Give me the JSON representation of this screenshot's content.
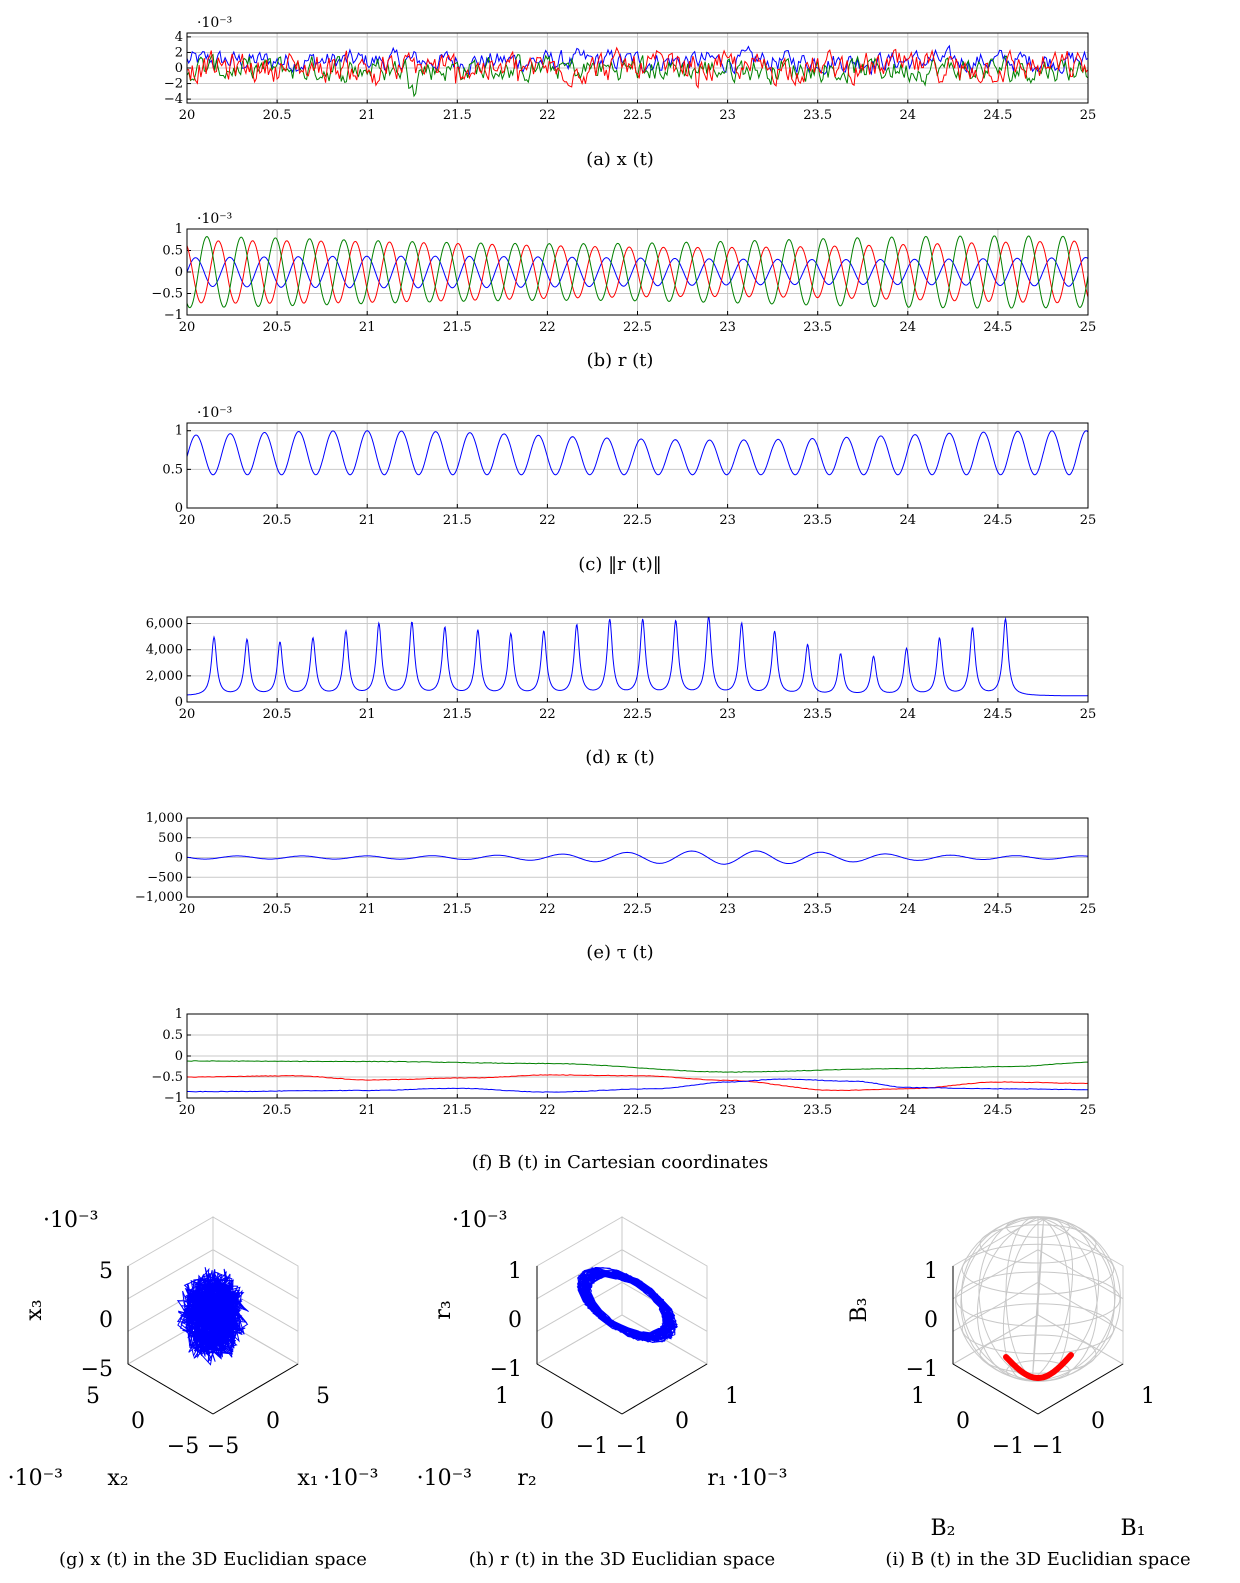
{
  "colors": {
    "series_1": "#0000ff",
    "series_2": "#ff0000",
    "series_3": "#008000",
    "grid": "#c9c9c9",
    "sphere": "#c8c8c8"
  },
  "chart_data": [
    {
      "id": "a",
      "type": "line",
      "caption": "(a) x (t)",
      "exponent": "·10⁻³",
      "xlim": [
        20,
        25
      ],
      "ylim": [
        -4.5,
        4.5
      ],
      "xticks": [
        "20",
        "20.5",
        "21",
        "21.5",
        "22",
        "22.5",
        "23",
        "23.5",
        "24",
        "24.5",
        "25"
      ],
      "yticks": [
        {
          "v": 4,
          "label": "4"
        },
        {
          "v": 2,
          "label": "2"
        },
        {
          "v": 0,
          "label": "0"
        },
        {
          "v": -2,
          "label": "−2"
        },
        {
          "v": -4,
          "label": "−4"
        }
      ],
      "series": [
        {
          "color": "#0000ff",
          "kind": "noise",
          "center": 0.9,
          "amplitude": 1.0
        },
        {
          "color": "#008000",
          "kind": "noise",
          "center": -0.1,
          "amplitude": 1.2
        },
        {
          "color": "#ff0000",
          "kind": "noise",
          "center": 0.1,
          "amplitude": 1.4
        }
      ]
    },
    {
      "id": "b",
      "type": "line",
      "caption": "(b) r (t)",
      "exponent": "·10⁻³",
      "xlim": [
        20,
        25
      ],
      "ylim": [
        -1,
        1
      ],
      "xticks": [
        "20",
        "20.5",
        "21",
        "21.5",
        "22",
        "22.5",
        "23",
        "23.5",
        "24",
        "24.5",
        "25"
      ],
      "yticks": [
        {
          "v": 1,
          "label": "1"
        },
        {
          "v": 0.5,
          "label": "0.5"
        },
        {
          "v": 0,
          "label": "0"
        },
        {
          "v": -0.5,
          "label": "−0.5"
        },
        {
          "v": -1,
          "label": "−1"
        }
      ],
      "series": [
        {
          "color": "#0000ff",
          "kind": "sine",
          "amplitude": 0.33,
          "offset": 0.0,
          "period": 0.19,
          "phase": 0.0
        },
        {
          "color": "#ff0000",
          "kind": "sine",
          "amplitude": 0.65,
          "offset": 0.0,
          "period": 0.19,
          "phase": 2.1
        },
        {
          "color": "#008000",
          "kind": "sine",
          "amplitude": 0.75,
          "offset": 0.0,
          "period": 0.19,
          "phase": 4.2
        }
      ]
    },
    {
      "id": "c",
      "type": "line",
      "caption": "(c) ‖r (t)‖",
      "exponent": "·10⁻³",
      "xlim": [
        20,
        25
      ],
      "ylim": [
        0,
        1.1
      ],
      "xticks": [
        "20",
        "20.5",
        "21",
        "21.5",
        "22",
        "22.5",
        "23",
        "23.5",
        "24",
        "24.5",
        "25"
      ],
      "yticks": [
        {
          "v": 1,
          "label": "1"
        },
        {
          "v": 0.5,
          "label": "0.5"
        },
        {
          "v": 0,
          "label": "0"
        }
      ],
      "series": [
        {
          "color": "#0000ff",
          "kind": "abs_sine",
          "low": 0.43,
          "high": 0.97,
          "period": 0.19
        }
      ]
    },
    {
      "id": "d",
      "type": "line",
      "caption": "(d) κ (t)",
      "exponent": "",
      "xlim": [
        20,
        25
      ],
      "ylim": [
        0,
        6500
      ],
      "xticks": [
        "20",
        "20.5",
        "21",
        "21.5",
        "22",
        "22.5",
        "23",
        "23.5",
        "24",
        "24.5",
        "25"
      ],
      "yticks": [
        {
          "v": 6000,
          "label": "6,000"
        },
        {
          "v": 4000,
          "label": "4,000"
        },
        {
          "v": 2000,
          "label": "2,000"
        },
        {
          "v": 0,
          "label": "0"
        }
      ],
      "series": [
        {
          "color": "#0000ff",
          "kind": "peaks",
          "period": 0.183,
          "start": 20.15,
          "base": 450,
          "peaks": [
            4900,
            4700,
            4500,
            4800,
            5300,
            5900,
            6000,
            5600,
            5400,
            5100,
            5300,
            5800,
            6200,
            6200,
            6100,
            6400,
            5900,
            5300,
            4300,
            3600,
            3400,
            4000,
            4800,
            5600,
            6300
          ]
        }
      ]
    },
    {
      "id": "e",
      "type": "line",
      "caption": "(e) τ (t)",
      "exponent": "",
      "xlim": [
        20,
        25
      ],
      "ylim": [
        -1000,
        1000
      ],
      "xticks": [
        "20",
        "20.5",
        "21",
        "21.5",
        "22",
        "22.5",
        "23",
        "23.5",
        "24",
        "24.5",
        "25"
      ],
      "yticks": [
        {
          "v": 1000,
          "label": "1,000"
        },
        {
          "v": 500,
          "label": "500"
        },
        {
          "v": 0,
          "label": "0"
        },
        {
          "v": -500,
          "label": "−500"
        },
        {
          "v": -1000,
          "label": "−1,000"
        }
      ],
      "series": [
        {
          "color": "#0000ff",
          "kind": "wave",
          "period": 0.36,
          "center": 23.0,
          "peak": 170,
          "base": 40
        }
      ]
    },
    {
      "id": "f",
      "type": "line",
      "caption": "(f) B (t) in Cartesian coordinates",
      "exponent": "",
      "xlim": [
        20,
        25
      ],
      "ylim": [
        -1,
        1
      ],
      "xticks": [
        "20",
        "20.5",
        "21",
        "21.5",
        "22",
        "22.5",
        "23",
        "23.5",
        "24",
        "24.5",
        "25"
      ],
      "yticks": [
        {
          "v": 1,
          "label": "1"
        },
        {
          "v": 0.5,
          "label": "0.5"
        },
        {
          "v": 0,
          "label": "0"
        },
        {
          "v": -0.5,
          "label": "−0.5"
        },
        {
          "v": -1,
          "label": "−1"
        }
      ],
      "series": [
        {
          "color": "#008000",
          "kind": "drift",
          "points": [
            [
              20,
              -0.12
            ],
            [
              21,
              -0.13
            ],
            [
              22,
              -0.18
            ],
            [
              23,
              -0.38
            ],
            [
              24,
              -0.3
            ],
            [
              24.6,
              -0.25
            ],
            [
              25,
              -0.15
            ]
          ]
        },
        {
          "color": "#ff0000",
          "kind": "drift",
          "points": [
            [
              20,
              -0.5
            ],
            [
              20.6,
              -0.47
            ],
            [
              21,
              -0.57
            ],
            [
              21.6,
              -0.52
            ],
            [
              22,
              -0.45
            ],
            [
              22.5,
              -0.47
            ],
            [
              23,
              -0.58
            ],
            [
              23.6,
              -0.82
            ],
            [
              24,
              -0.78
            ],
            [
              24.5,
              -0.62
            ],
            [
              25,
              -0.65
            ]
          ]
        },
        {
          "color": "#0000ff",
          "kind": "drift",
          "points": [
            [
              20,
              -0.85
            ],
            [
              21,
              -0.82
            ],
            [
              21.5,
              -0.77
            ],
            [
              22,
              -0.86
            ],
            [
              22.6,
              -0.78
            ],
            [
              23,
              -0.62
            ],
            [
              23.3,
              -0.55
            ],
            [
              23.7,
              -0.6
            ],
            [
              24,
              -0.75
            ],
            [
              24.5,
              -0.78
            ],
            [
              25,
              -0.8
            ]
          ]
        }
      ]
    },
    {
      "id": "g",
      "type": "scatter",
      "caption": "(g) x (t) in the 3D Euclidian space",
      "exponent_z": "·10⁻³",
      "exponent_xy": "·10⁻³",
      "zlabel": "x₃",
      "xlabel": "x₁",
      "ylabel": "x₂",
      "zticks": [
        "5",
        "0",
        "−5"
      ],
      "xticks": [
        "−5",
        "0",
        "5"
      ],
      "yticks": [
        "5",
        "0",
        "−5"
      ],
      "cloud": "blob"
    },
    {
      "id": "h",
      "type": "scatter",
      "caption": "(h) r (t) in the 3D Euclidian space",
      "exponent_z": "·10⁻³",
      "exponent_xy": "·10⁻³",
      "zlabel": "r₃",
      "xlabel": "r₁",
      "ylabel": "r₂",
      "zticks": [
        "1",
        "0",
        "−1"
      ],
      "xticks": [
        "−1",
        "0",
        "1"
      ],
      "yticks": [
        "1",
        "0",
        "−1"
      ],
      "cloud": "ring"
    },
    {
      "id": "i",
      "type": "scatter",
      "caption": "(i) B (t) in the 3D Euclidian space",
      "exponent_z": "",
      "exponent_xy": "",
      "zlabel": "B₃",
      "xlabel": "B₁",
      "ylabel": "B₂",
      "zticks": [
        "1",
        "0",
        "−1"
      ],
      "xticks": [
        "−1",
        "0",
        "1"
      ],
      "yticks": [
        "1",
        "0",
        "−1"
      ],
      "cloud": "arc"
    }
  ]
}
